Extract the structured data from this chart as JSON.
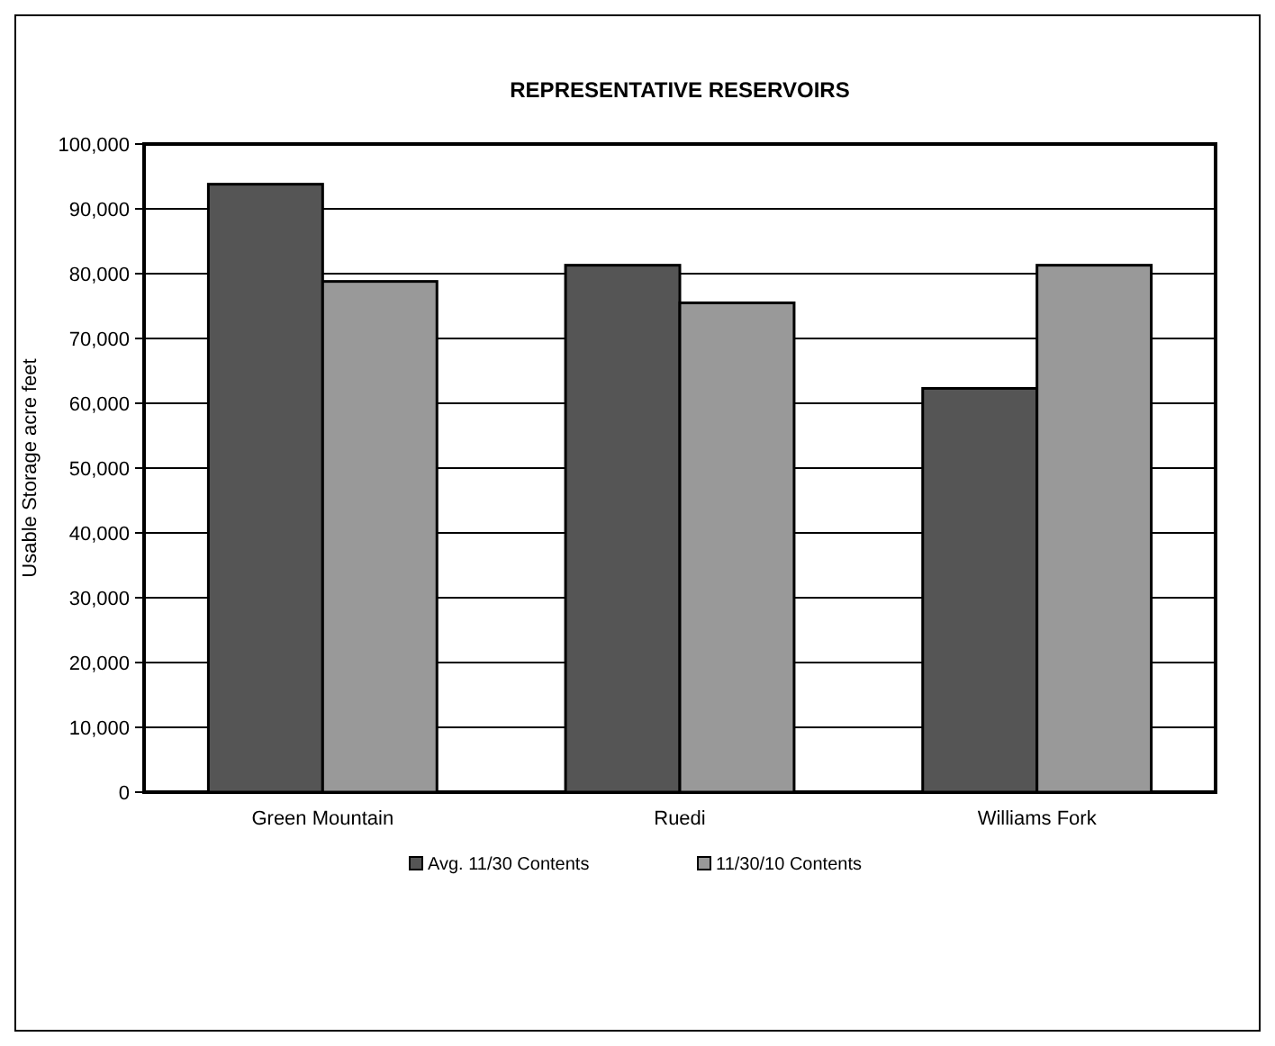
{
  "chart_data": {
    "type": "bar",
    "title": "REPRESENTATIVE RESERVOIRS",
    "ylabel": "Usable Storage acre feet",
    "categories": [
      "Green Mountain",
      "Ruedi",
      "Williams Fork"
    ],
    "series": [
      {
        "name": "Avg. 11/30 Contents",
        "color": "#555555",
        "values": [
          93800,
          81300,
          62300
        ]
      },
      {
        "name": "11/30/10 Contents",
        "color": "#999999",
        "values": [
          78800,
          75500,
          81300
        ]
      }
    ],
    "ylim": [
      0,
      100000
    ],
    "yticks": [
      {
        "value": 0,
        "label": "0"
      },
      {
        "value": 10000,
        "label": "10,000"
      },
      {
        "value": 20000,
        "label": "20,000"
      },
      {
        "value": 30000,
        "label": "30,000"
      },
      {
        "value": 40000,
        "label": "40,000"
      },
      {
        "value": 50000,
        "label": "50,000"
      },
      {
        "value": 60000,
        "label": "60,000"
      },
      {
        "value": 70000,
        "label": "70,000"
      },
      {
        "value": 80000,
        "label": "80,000"
      },
      {
        "value": 90000,
        "label": "90,000"
      },
      {
        "value": 100000,
        "label": "100,000"
      }
    ],
    "grid": "y",
    "legend": "bottom"
  }
}
